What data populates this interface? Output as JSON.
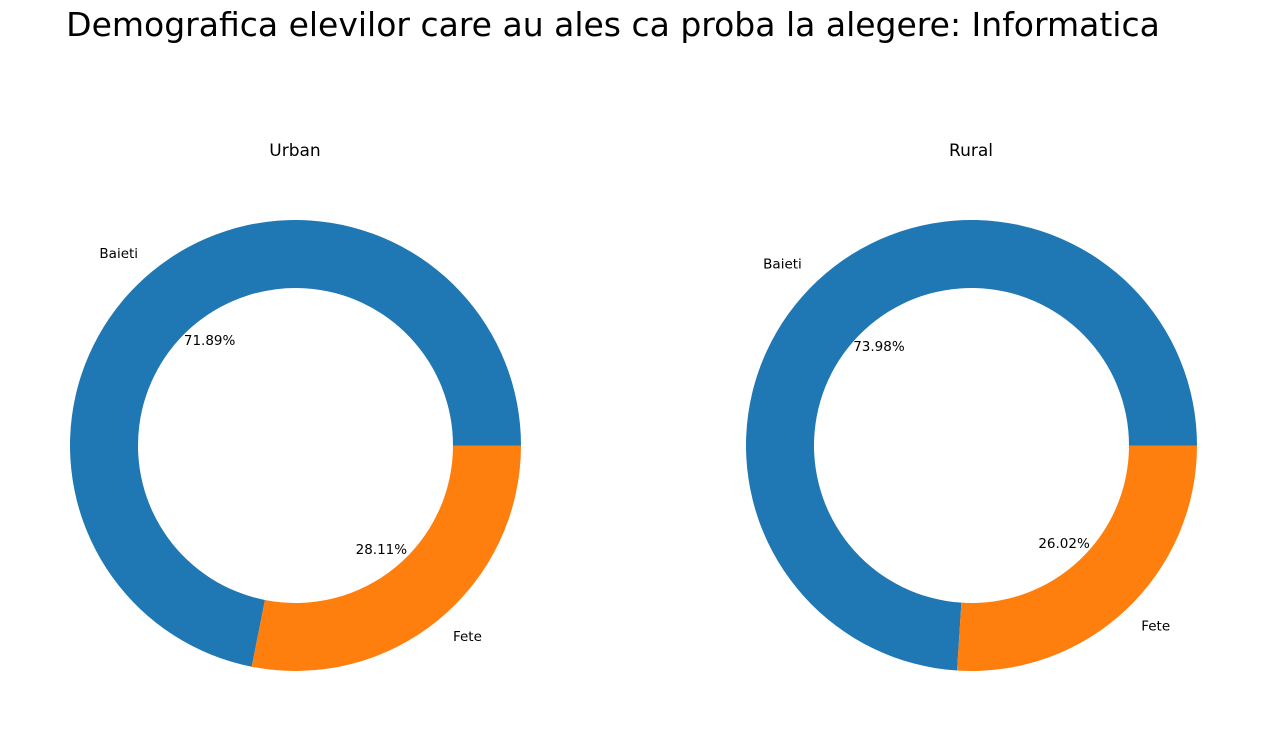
{
  "figure": {
    "title": "Demografica elevilor care au ales ca proba la alegere: Informatica"
  },
  "chart_data": [
    {
      "type": "pie",
      "variant": "donut",
      "title": "Urban",
      "categories": [
        "Baieti",
        "Fete"
      ],
      "values": [
        71.89,
        28.11
      ],
      "value_labels": [
        "71.89%",
        "28.11%"
      ],
      "colors": [
        "#1f77b4",
        "#ff7f0e"
      ],
      "start_angle_deg": 0,
      "direction": "counterclockwise"
    },
    {
      "type": "pie",
      "variant": "donut",
      "title": "Rural",
      "categories": [
        "Baieti",
        "Fete"
      ],
      "values": [
        73.98,
        26.02
      ],
      "value_labels": [
        "73.98%",
        "26.02%"
      ],
      "colors": [
        "#1f77b4",
        "#ff7f0e"
      ],
      "start_angle_deg": 0,
      "direction": "counterclockwise"
    }
  ]
}
